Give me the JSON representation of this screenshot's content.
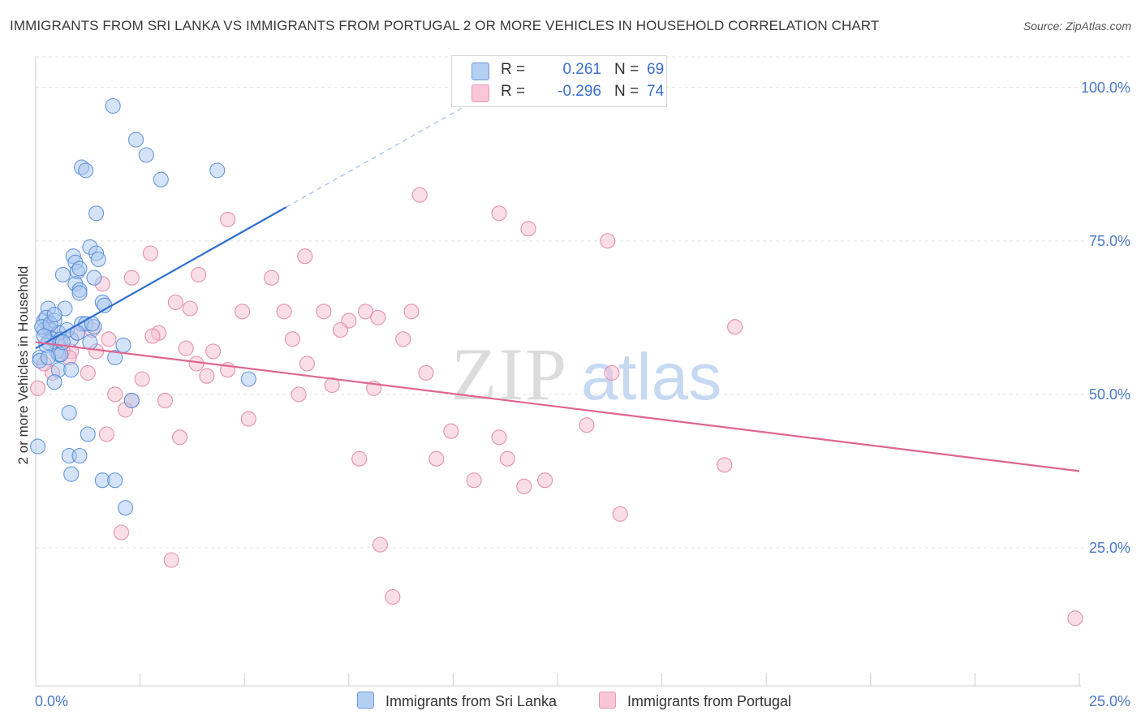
{
  "header": {
    "title": "IMMIGRANTS FROM SRI LANKA VS IMMIGRANTS FROM PORTUGAL 2 OR MORE VEHICLES IN HOUSEHOLD CORRELATION CHART",
    "source": "Source: ZipAtlas.com"
  },
  "legend": {
    "series1": {
      "r_label": "R =",
      "r_value": "0.261",
      "n_label": "N =",
      "n_value": "69"
    },
    "series2": {
      "r_label": "R =",
      "r_value": "-0.296",
      "n_label": "N =",
      "n_value": "74"
    }
  },
  "watermark": {
    "part1": "ZIP",
    "part2": "atlas"
  },
  "colors": {
    "blue_fill": "#a9c8f0",
    "blue_stroke": "#4f86d6",
    "blue_line": "#2f6fd1",
    "pink_fill": "#f6bed0",
    "pink_stroke": "#e27fa0",
    "pink_line": "#e06590",
    "tick_text": "#4a78c8",
    "grid": "#e3e3e3"
  },
  "chart_data": {
    "type": "scatter",
    "title": "IMMIGRANTS FROM SRI LANKA VS IMMIGRANTS FROM PORTUGAL 2 OR MORE VEHICLES IN HOUSEHOLD CORRELATION CHART",
    "xlabel": "",
    "ylabel": "2 or more Vehicles in Household",
    "xlim": [
      0,
      25
    ],
    "ylim": [
      2.5,
      105
    ],
    "x_tick_labels": [
      {
        "value": 0,
        "label": "0.0%"
      },
      {
        "value": 25,
        "label": "25.0%"
      }
    ],
    "y_tick_labels": [
      {
        "value": 100,
        "label": "100.0%"
      },
      {
        "value": 75,
        "label": "75.0%"
      },
      {
        "value": 50,
        "label": "50.0%"
      },
      {
        "value": 25,
        "label": "25.0%"
      }
    ],
    "grid": true,
    "legend_position": "top-center",
    "series": [
      {
        "name": "Immigrants from Sri Lanka",
        "color": "blue",
        "R": 0.261,
        "N": 69,
        "trend": {
          "x0": 0.0,
          "y0": 57.5,
          "x1": 6.0,
          "y1": 80.5,
          "dash_to_x": 10.3,
          "dash_to_y": 97.0
        },
        "points": [
          [
            1.85,
            97.0
          ],
          [
            0.2,
            62.0
          ],
          [
            2.4,
            91.5
          ],
          [
            2.65,
            89.0
          ],
          [
            3.0,
            85.0
          ],
          [
            1.1,
            87.0
          ],
          [
            1.2,
            86.5
          ],
          [
            4.35,
            86.5
          ],
          [
            1.45,
            79.5
          ],
          [
            1.3,
            74.0
          ],
          [
            0.9,
            72.5
          ],
          [
            1.45,
            73.0
          ],
          [
            1.5,
            72.0
          ],
          [
            0.95,
            71.5
          ],
          [
            0.65,
            69.5
          ],
          [
            1.0,
            70.0
          ],
          [
            1.05,
            70.5
          ],
          [
            1.4,
            69.0
          ],
          [
            0.95,
            68.0
          ],
          [
            1.05,
            67.0
          ],
          [
            1.05,
            66.5
          ],
          [
            1.6,
            65.0
          ],
          [
            1.65,
            64.5
          ],
          [
            0.3,
            64.0
          ],
          [
            0.7,
            64.0
          ],
          [
            0.25,
            62.5
          ],
          [
            0.45,
            62.0
          ],
          [
            1.1,
            61.5
          ],
          [
            1.2,
            61.5
          ],
          [
            1.4,
            61.0
          ],
          [
            0.2,
            60.5
          ],
          [
            0.35,
            60.5
          ],
          [
            0.55,
            60.0
          ],
          [
            0.4,
            59.0
          ],
          [
            0.6,
            59.0
          ],
          [
            0.85,
            59.0
          ],
          [
            0.3,
            58.5
          ],
          [
            1.3,
            58.5
          ],
          [
            2.1,
            58.0
          ],
          [
            0.5,
            57.0
          ],
          [
            0.55,
            56.5
          ],
          [
            0.6,
            56.5
          ],
          [
            0.1,
            56.0
          ],
          [
            1.9,
            56.0
          ],
          [
            0.1,
            55.5
          ],
          [
            0.55,
            54.0
          ],
          [
            0.85,
            54.0
          ],
          [
            5.1,
            52.5
          ],
          [
            0.45,
            52.0
          ],
          [
            2.3,
            49.0
          ],
          [
            0.8,
            47.0
          ],
          [
            1.25,
            43.5
          ],
          [
            0.05,
            41.5
          ],
          [
            0.8,
            40.0
          ],
          [
            1.05,
            40.0
          ],
          [
            0.85,
            37.0
          ],
          [
            1.6,
            36.0
          ],
          [
            1.9,
            36.0
          ],
          [
            2.15,
            31.5
          ],
          [
            0.15,
            61.0
          ],
          [
            0.35,
            61.5
          ],
          [
            0.25,
            58.0
          ],
          [
            0.75,
            60.5
          ],
          [
            1.0,
            60.0
          ],
          [
            0.45,
            63.0
          ],
          [
            1.35,
            61.5
          ],
          [
            0.2,
            59.5
          ],
          [
            0.65,
            58.5
          ],
          [
            0.3,
            56.0
          ]
        ]
      },
      {
        "name": "Immigrants from Portugal",
        "color": "pink",
        "R": -0.296,
        "N": 74,
        "trend": {
          "x0": 0.0,
          "y0": 58.5,
          "x1": 25.0,
          "y1": 37.5
        },
        "points": [
          [
            9.2,
            82.5
          ],
          [
            11.1,
            79.5
          ],
          [
            11.8,
            77.0
          ],
          [
            4.6,
            78.5
          ],
          [
            13.7,
            75.0
          ],
          [
            2.75,
            73.0
          ],
          [
            6.45,
            72.5
          ],
          [
            2.3,
            69.0
          ],
          [
            3.9,
            69.5
          ],
          [
            5.65,
            69.0
          ],
          [
            1.6,
            68.0
          ],
          [
            3.35,
            65.0
          ],
          [
            3.7,
            64.0
          ],
          [
            4.95,
            63.5
          ],
          [
            5.95,
            63.5
          ],
          [
            6.9,
            63.5
          ],
          [
            7.9,
            63.5
          ],
          [
            9.0,
            63.5
          ],
          [
            7.5,
            62.0
          ],
          [
            8.2,
            62.5
          ],
          [
            16.75,
            61.0
          ],
          [
            7.3,
            60.5
          ],
          [
            2.95,
            60.0
          ],
          [
            2.8,
            59.5
          ],
          [
            6.15,
            59.0
          ],
          [
            8.8,
            59.0
          ],
          [
            1.75,
            59.0
          ],
          [
            3.6,
            57.5
          ],
          [
            4.25,
            57.0
          ],
          [
            1.45,
            57.0
          ],
          [
            0.85,
            57.0
          ],
          [
            3.85,
            55.0
          ],
          [
            6.5,
            55.0
          ],
          [
            4.6,
            54.0
          ],
          [
            13.8,
            53.5
          ],
          [
            4.1,
            53.0
          ],
          [
            9.35,
            53.5
          ],
          [
            2.55,
            52.5
          ],
          [
            7.1,
            51.5
          ],
          [
            8.1,
            51.0
          ],
          [
            1.9,
            50.0
          ],
          [
            6.3,
            50.0
          ],
          [
            2.3,
            49.0
          ],
          [
            3.1,
            49.0
          ],
          [
            2.15,
            47.5
          ],
          [
            5.1,
            46.0
          ],
          [
            13.2,
            45.0
          ],
          [
            9.95,
            44.0
          ],
          [
            1.7,
            43.5
          ],
          [
            3.45,
            43.0
          ],
          [
            11.1,
            43.0
          ],
          [
            7.75,
            39.5
          ],
          [
            9.6,
            39.5
          ],
          [
            11.3,
            39.5
          ],
          [
            16.5,
            38.5
          ],
          [
            10.5,
            36.0
          ],
          [
            12.2,
            36.0
          ],
          [
            11.7,
            35.0
          ],
          [
            14.0,
            30.5
          ],
          [
            2.05,
            27.5
          ],
          [
            8.25,
            25.5
          ],
          [
            3.25,
            23.0
          ],
          [
            8.55,
            17.0
          ],
          [
            24.9,
            13.5
          ],
          [
            0.05,
            51.0
          ],
          [
            0.4,
            53.5
          ],
          [
            0.3,
            61.0
          ],
          [
            1.0,
            60.0
          ],
          [
            0.65,
            57.0
          ],
          [
            0.5,
            58.5
          ],
          [
            1.25,
            53.5
          ],
          [
            0.8,
            56.0
          ],
          [
            1.35,
            60.5
          ],
          [
            0.2,
            55.0
          ]
        ]
      }
    ]
  },
  "bottom_legend": {
    "item1": "Immigrants from Sri Lanka",
    "item2": "Immigrants from Portugal"
  }
}
